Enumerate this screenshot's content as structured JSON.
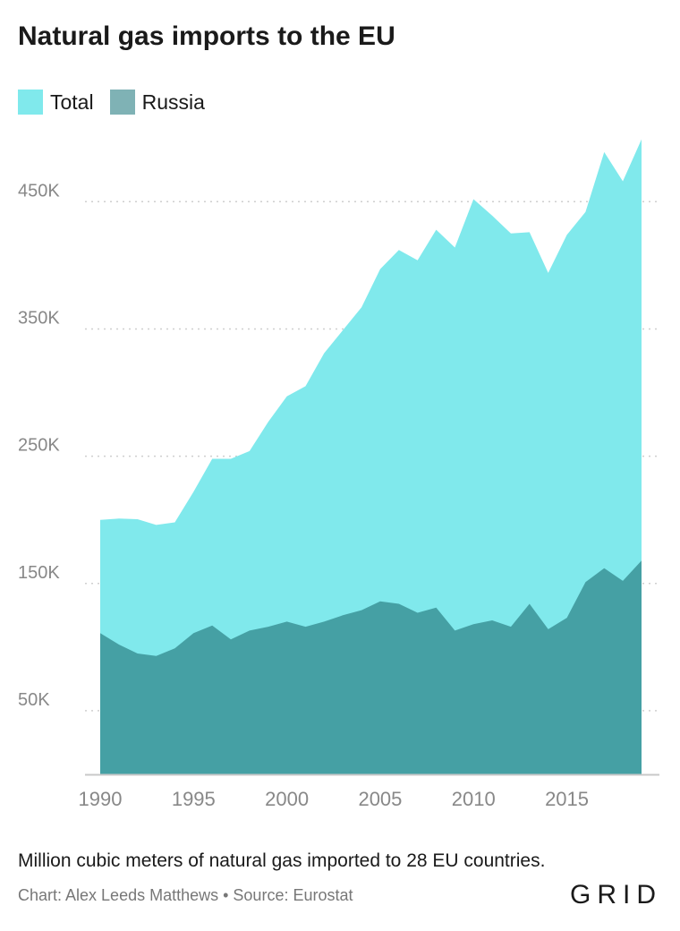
{
  "title": "Natural gas imports to the EU",
  "subtitle": "Million cubic meters of natural gas imported to 28 EU countries.",
  "credit": "Chart: Alex Leeds Matthews • Source: Eurostat",
  "logo": "GRID",
  "colors": {
    "total": "#80e9ec",
    "russia": "#45a0a4",
    "grid": "#cfcfcf",
    "axis": "#c8c8c8"
  },
  "chart_data": {
    "type": "area",
    "x": [
      1990,
      1991,
      1992,
      1993,
      1994,
      1995,
      1996,
      1997,
      1998,
      1999,
      2000,
      2001,
      2002,
      2003,
      2004,
      2005,
      2006,
      2007,
      2008,
      2009,
      2010,
      2011,
      2012,
      2013,
      2014,
      2015,
      2016,
      2017,
      2018,
      2019
    ],
    "series": [
      {
        "name": "Total",
        "values": [
          200000,
          201000,
          200500,
          196000,
          198000,
          222000,
          248000,
          248000,
          254000,
          277000,
          297000,
          305000,
          331000,
          349000,
          367000,
          397000,
          412000,
          404000,
          428000,
          414000,
          452000,
          439000,
          425000,
          426000,
          394000,
          424000,
          442000,
          489000,
          466000,
          499000
        ]
      },
      {
        "name": "Russia",
        "values": [
          111000,
          102000,
          95000,
          93000,
          99000,
          111000,
          117000,
          106000,
          113000,
          116000,
          120000,
          116000,
          120000,
          125000,
          129000,
          136000,
          134000,
          127000,
          131000,
          113000,
          118000,
          121000,
          116000,
          134000,
          114000,
          123000,
          151000,
          162000,
          152000,
          168000
        ]
      }
    ],
    "xlim": [
      1990,
      2019
    ],
    "ylim": [
      0,
      510000
    ],
    "y_ticks": [
      {
        "value": 50000,
        "label": "50K"
      },
      {
        "value": 150000,
        "label": "150K"
      },
      {
        "value": 250000,
        "label": "250K"
      },
      {
        "value": 350000,
        "label": "350K"
      },
      {
        "value": 450000,
        "label": "450K"
      }
    ],
    "x_ticks": [
      {
        "value": 1990,
        "label": "1990"
      },
      {
        "value": 1995,
        "label": "1995"
      },
      {
        "value": 2000,
        "label": "2000"
      },
      {
        "value": 2005,
        "label": "2005"
      },
      {
        "value": 2010,
        "label": "2010"
      },
      {
        "value": 2015,
        "label": "2015"
      }
    ],
    "grid": "horizontal dotted",
    "legend": "top-left"
  }
}
